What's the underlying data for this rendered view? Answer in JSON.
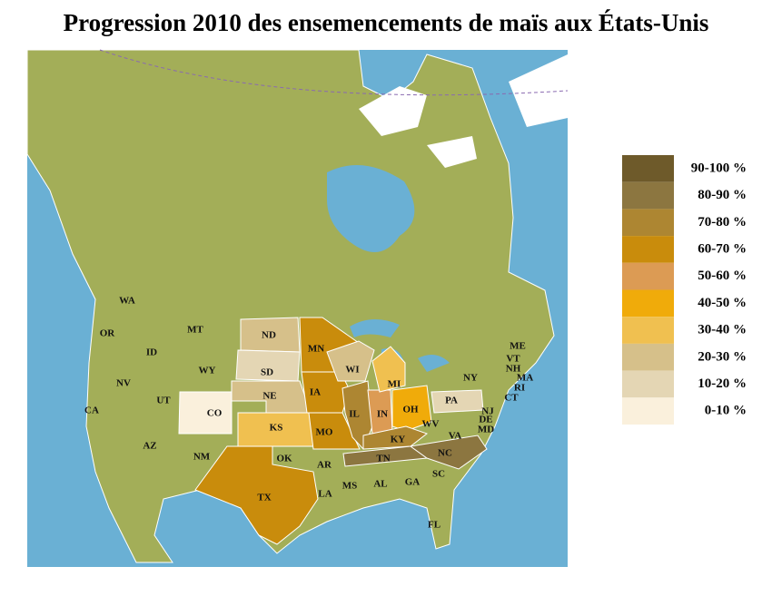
{
  "title": "Progression 2010 des ensemencements de maïs aux États-Unis",
  "legend": [
    {
      "label": "90-100 %",
      "color": "#6e5a2a"
    },
    {
      "label": "80-90 %",
      "color": "#8c7640"
    },
    {
      "label": "70-80 %",
      "color": "#ad8632"
    },
    {
      "label": "60-70 %",
      "color": "#c98c0c"
    },
    {
      "label": "50-60 %",
      "color": "#dc9b54"
    },
    {
      "label": "40-50 %",
      "color": "#f0ab0a"
    },
    {
      "label": "30-40 %",
      "color": "#f0c050"
    },
    {
      "label": "20-30 %",
      "color": "#d6c08a"
    },
    {
      "label": "10-20 %",
      "color": "#e4d6b4"
    },
    {
      "label": "0-10 %",
      "color": "#faf0dc"
    }
  ],
  "states": [
    {
      "label": "ND",
      "color": "#d6c08a"
    },
    {
      "label": "SD",
      "color": "#e4d6b4"
    },
    {
      "label": "NE",
      "color": "#d6c08a"
    },
    {
      "label": "CO",
      "color": "#faf0dc"
    },
    {
      "label": "KS",
      "color": "#f0c050"
    },
    {
      "label": "MN",
      "color": "#c98c0c"
    },
    {
      "label": "IA",
      "color": "#c98c0c"
    },
    {
      "label": "MO",
      "color": "#c98c0c"
    },
    {
      "label": "WI",
      "color": "#d6c08a"
    },
    {
      "label": "IL",
      "color": "#ad8632"
    },
    {
      "label": "IN",
      "color": "#dc9b54"
    },
    {
      "label": "OH",
      "color": "#f0ab0a"
    },
    {
      "label": "MI",
      "color": "#f0c050"
    },
    {
      "label": "KY",
      "color": "#ad8632"
    },
    {
      "label": "TN",
      "color": "#8c7640"
    },
    {
      "label": "NC",
      "color": "#8c7640"
    },
    {
      "label": "PA",
      "color": "#e4d6b4"
    },
    {
      "label": "TX",
      "color": "#c98c0c"
    },
    {
      "label": "WA"
    },
    {
      "label": "OR"
    },
    {
      "label": "CA"
    },
    {
      "label": "ID"
    },
    {
      "label": "NV"
    },
    {
      "label": "MT"
    },
    {
      "label": "WY"
    },
    {
      "label": "UT"
    },
    {
      "label": "AZ"
    },
    {
      "label": "NM"
    },
    {
      "label": "OK"
    },
    {
      "label": "AR"
    },
    {
      "label": "LA"
    },
    {
      "label": "MS"
    },
    {
      "label": "AL"
    },
    {
      "label": "GA"
    },
    {
      "label": "FL"
    },
    {
      "label": "SC"
    },
    {
      "label": "VA"
    },
    {
      "label": "WV"
    },
    {
      "label": "NY"
    },
    {
      "label": "ME"
    },
    {
      "label": "VT"
    },
    {
      "label": "NH"
    },
    {
      "label": "MA"
    },
    {
      "label": "RI"
    },
    {
      "label": "CT"
    },
    {
      "label": "NJ"
    },
    {
      "label": "DE"
    },
    {
      "label": "MD"
    }
  ]
}
